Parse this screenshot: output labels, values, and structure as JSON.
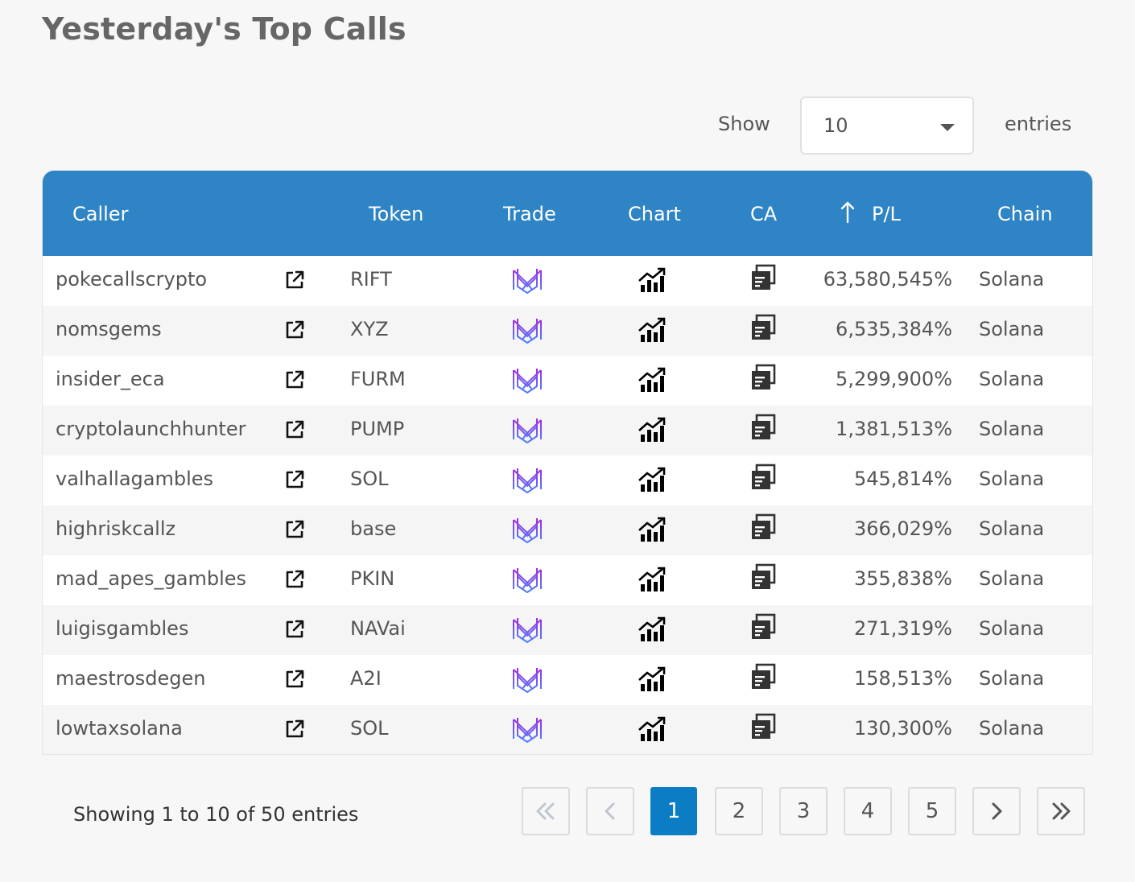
{
  "title": "Yesterday's Top Calls",
  "length_control": {
    "show_label": "Show",
    "selected": "10",
    "entries_label": "entries"
  },
  "columns": [
    "Caller",
    "Token",
    "Trade",
    "Chart",
    "CA",
    "P/L",
    "Chain"
  ],
  "sort": {
    "column": "P/L",
    "direction": "desc-arrow-up-icon"
  },
  "rows": [
    {
      "caller": "pokecallscrypto",
      "token": "RIFT",
      "pl": "63,580,545%",
      "chain": "Solana"
    },
    {
      "caller": "nomsgems",
      "token": "XYZ",
      "pl": "6,535,384%",
      "chain": "Solana"
    },
    {
      "caller": "insider_eca",
      "token": "FURM",
      "pl": "5,299,900%",
      "chain": "Solana"
    },
    {
      "caller": "cryptolaunchhunter",
      "token": "PUMP",
      "pl": "1,381,513%",
      "chain": "Solana"
    },
    {
      "caller": "valhallagambles",
      "token": "SOL",
      "pl": "545,814%",
      "chain": "Solana"
    },
    {
      "caller": "highriskcallz",
      "token": "base",
      "pl": "366,029%",
      "chain": "Solana"
    },
    {
      "caller": "mad_apes_gambles",
      "token": "PKIN",
      "pl": "355,838%",
      "chain": "Solana"
    },
    {
      "caller": "luigisgambles",
      "token": "NAVai",
      "pl": "271,319%",
      "chain": "Solana"
    },
    {
      "caller": "maestrosdegen",
      "token": "A2I",
      "pl": "158,513%",
      "chain": "Solana"
    },
    {
      "caller": "lowtaxsolana",
      "token": "SOL",
      "pl": "130,300%",
      "chain": "Solana"
    }
  ],
  "info": "Showing 1 to 10 of 50 entries",
  "pagination": {
    "pages": [
      "1",
      "2",
      "3",
      "4",
      "5"
    ],
    "current": "1"
  },
  "icons": {
    "link": "external-link-icon",
    "trade": "trade-logo-icon",
    "chart": "chart-growth-icon",
    "ca": "copy-icon"
  },
  "colors": {
    "header_bg": "#2e84c5",
    "active_page": "#0a7dc4",
    "trade_logo_purple": "#9b2ee0",
    "trade_logo_blue": "#4a7bff"
  }
}
